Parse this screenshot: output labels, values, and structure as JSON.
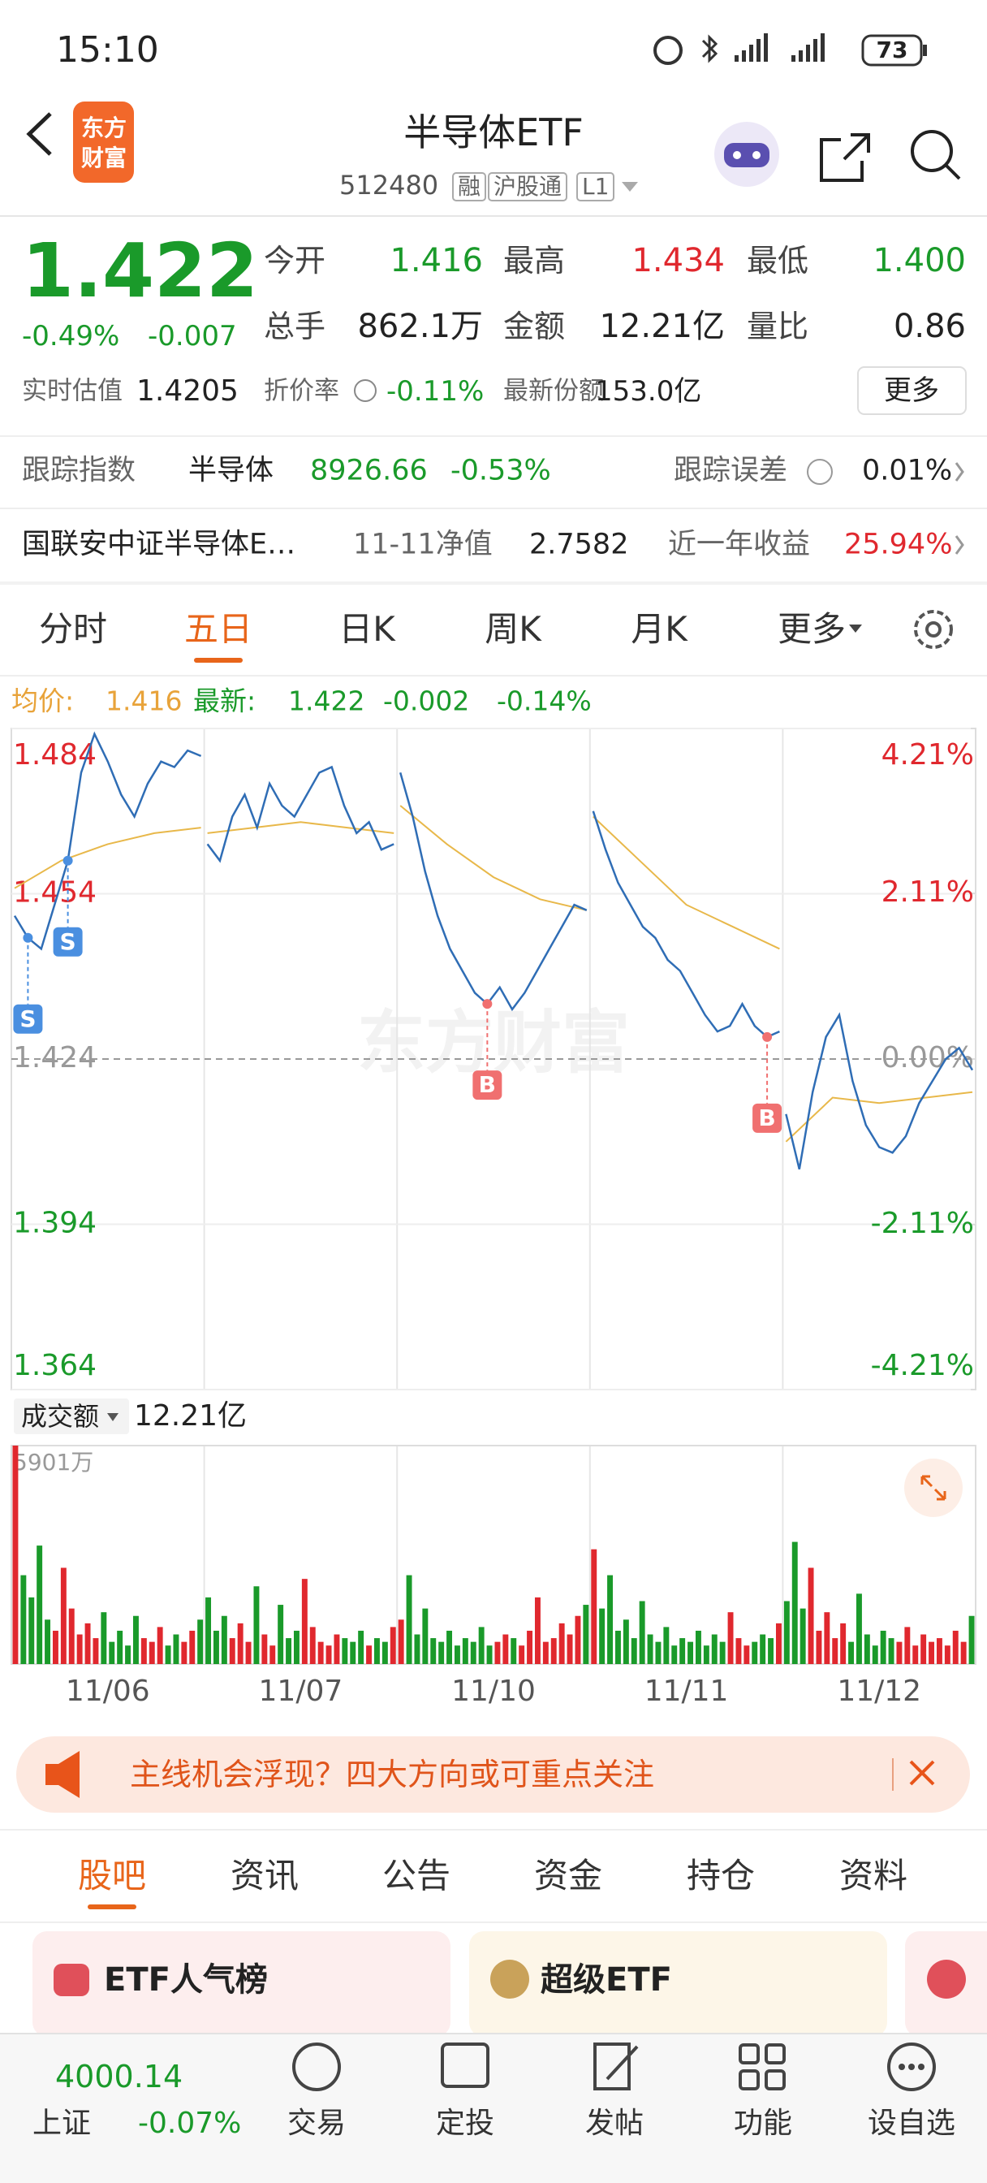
{
  "status_bar": {
    "time": "15:10",
    "battery": "73"
  },
  "header": {
    "logo": [
      "东方",
      "财富"
    ],
    "title": "半导体ETF",
    "code": "512480",
    "tags": [
      "融",
      "沪股通",
      "L1"
    ]
  },
  "quote": {
    "price": "1.422",
    "change_pct": "-0.49%",
    "change": "-0.007",
    "fields": [
      {
        "label": "今开",
        "value": "1.416"
      },
      {
        "label": "最高",
        "value": "1.434"
      },
      {
        "label": "最低",
        "value": "1.400"
      },
      {
        "label": "总手",
        "value": "862.1万"
      },
      {
        "label": "金额",
        "value": "12.21亿"
      },
      {
        "label": "量比",
        "value": "0.86"
      }
    ],
    "estimate": {
      "label": "实时估值",
      "value": "1.4205"
    },
    "discount": {
      "label": "折价率",
      "value": "-0.11%"
    },
    "shares": {
      "label": "最新份额",
      "value": "153.0亿"
    },
    "more": "更多"
  },
  "tracking": {
    "label": "跟踪指数",
    "index": "半导体",
    "value": "8926.66",
    "change": "-0.53%",
    "error_label": "跟踪误差",
    "error": "0.01%"
  },
  "fund": {
    "name": "国联安中证半导体E…",
    "nav_label": "11-11净值",
    "nav": "2.7582",
    "return_label": "近一年收益",
    "return": "25.94%"
  },
  "period_tabs": {
    "items": [
      "分时",
      "五日",
      "日K",
      "周K",
      "月K",
      "更多"
    ],
    "active": 1
  },
  "avg_row": {
    "avg_label": "均价:",
    "avg": "1.416",
    "last_label": "最新:",
    "last": "1.422",
    "change": "-0.002",
    "change_pct": "-0.14%"
  },
  "chart_data": [
    {
      "type": "line",
      "watermark": "东方财富",
      "ylim": [
        1.364,
        1.484
      ],
      "yticks": [
        1.364,
        1.394,
        1.424,
        1.454,
        1.484
      ],
      "y2lim": [
        -4.21,
        4.21
      ],
      "y2ticks": [
        {
          "value": -4.21,
          "label": "-4.21%"
        },
        {
          "value": -2.11,
          "label": "-2.11%"
        },
        {
          "value": 0,
          "label": "0.00%"
        },
        {
          "value": 2.11,
          "label": "2.11%"
        },
        {
          "value": 4.21,
          "label": "4.21%"
        }
      ],
      "series": [
        {
          "color": "#2f6db5",
          "values": [
            [
              1.45,
              1.446,
              1.444,
              1.452,
              1.46,
              1.476,
              1.483,
              1.478,
              1.472,
              1.468,
              1.474,
              1.478,
              1.477,
              1.48,
              1.479
            ],
            [
              1.463,
              1.46,
              1.468,
              1.472,
              1.466,
              1.474,
              1.47,
              1.468,
              1.472,
              1.476,
              1.477,
              1.47,
              1.465,
              1.467,
              1.462,
              1.463
            ],
            [
              1.476,
              1.468,
              1.458,
              1.45,
              1.444,
              1.44,
              1.436,
              1.434,
              1.437,
              1.433,
              1.436,
              1.44,
              1.444,
              1.448,
              1.452,
              1.451
            ],
            [
              1.469,
              1.462,
              1.456,
              1.452,
              1.448,
              1.446,
              1.442,
              1.44,
              1.436,
              1.432,
              1.429,
              1.43,
              1.434,
              1.43,
              1.428,
              1.429
            ],
            [
              1.414,
              1.404,
              1.418,
              1.428,
              1.432,
              1.42,
              1.412,
              1.408,
              1.407,
              1.41,
              1.416,
              1.42,
              1.424,
              1.426,
              1.422
            ]
          ]
        },
        {
          "color": "#e8b84a",
          "values": [
            [
              1.455,
              1.46,
              1.463,
              1.465,
              1.466
            ],
            [
              1.465,
              1.466,
              1.467,
              1.466,
              1.465
            ],
            [
              1.47,
              1.463,
              1.457,
              1.453,
              1.451
            ],
            [
              1.468,
              1.46,
              1.452,
              1.448,
              1.444
            ],
            [
              1.409,
              1.417,
              1.416,
              1.417,
              1.418
            ]
          ]
        }
      ],
      "trades": [
        [
          {
            "label": "S",
            "value": 1.446,
            "color": "#4a8fe0"
          },
          {
            "label": "S",
            "value": 1.46,
            "color": "#4a8fe0"
          }
        ],
        [],
        [
          {
            "label": "B",
            "value": 1.434,
            "color": "#f07070"
          }
        ],
        [
          {
            "label": "B",
            "value": 1.428,
            "color": "#f07070"
          }
        ],
        []
      ]
    },
    {
      "type": "bar",
      "label": "成交额",
      "total": "12.21亿",
      "categories": [
        "11/06",
        "11/07",
        "11/10",
        "11/11",
        "11/12"
      ],
      "ylim": [
        0,
        5901
      ],
      "yticks": [
        {
          "value": 5901,
          "label": "5901万"
        }
      ],
      "colors": {
        "up": "#e0282e",
        "down": "#1a9a2a"
      },
      "values": [
        [
          5901,
          2400,
          1800,
          3200,
          1200,
          900,
          2600,
          1500,
          800,
          1100,
          700,
          1400,
          600,
          900,
          500,
          1300,
          700,
          600,
          1000,
          500,
          800,
          600,
          900,
          1200
        ],
        [
          1800,
          900,
          1300,
          700,
          1100,
          600,
          2100,
          800,
          500,
          1600,
          700,
          900,
          2300,
          1000,
          600,
          500,
          800,
          700,
          600,
          900,
          500,
          700,
          600,
          1000
        ],
        [
          1200,
          2400,
          800,
          1500,
          700,
          600,
          900,
          500,
          700,
          600,
          1000,
          500,
          600,
          800,
          700,
          500,
          900,
          1800,
          600,
          700,
          1100,
          800,
          1300,
          1600
        ],
        [
          3100,
          1500,
          2400,
          900,
          1200,
          700,
          1700,
          800,
          600,
          1000,
          500,
          700,
          600,
          900,
          500,
          800,
          600,
          1400,
          700,
          500,
          600,
          800,
          700,
          1100
        ],
        [
          1700,
          3300,
          1500,
          2600,
          900,
          1400,
          700,
          1100,
          600,
          1900,
          800,
          500,
          900,
          700,
          600,
          1000,
          500,
          800,
          600,
          700,
          500,
          900,
          600,
          1300
        ]
      ]
    }
  ],
  "banner": "主线机会浮现？四大方向或可重点关注",
  "content_tabs": {
    "items": [
      "股吧",
      "资讯",
      "公告",
      "资金",
      "持仓",
      "资料"
    ],
    "active": 0
  },
  "cards": [
    "ETF人气榜",
    "超级ETF"
  ],
  "bottom_bar": {
    "index_value": "4000.14",
    "index_name": "上证",
    "index_change": "-0.07%",
    "nav": [
      "交易",
      "定投",
      "发帖",
      "功能",
      "设自选"
    ]
  }
}
